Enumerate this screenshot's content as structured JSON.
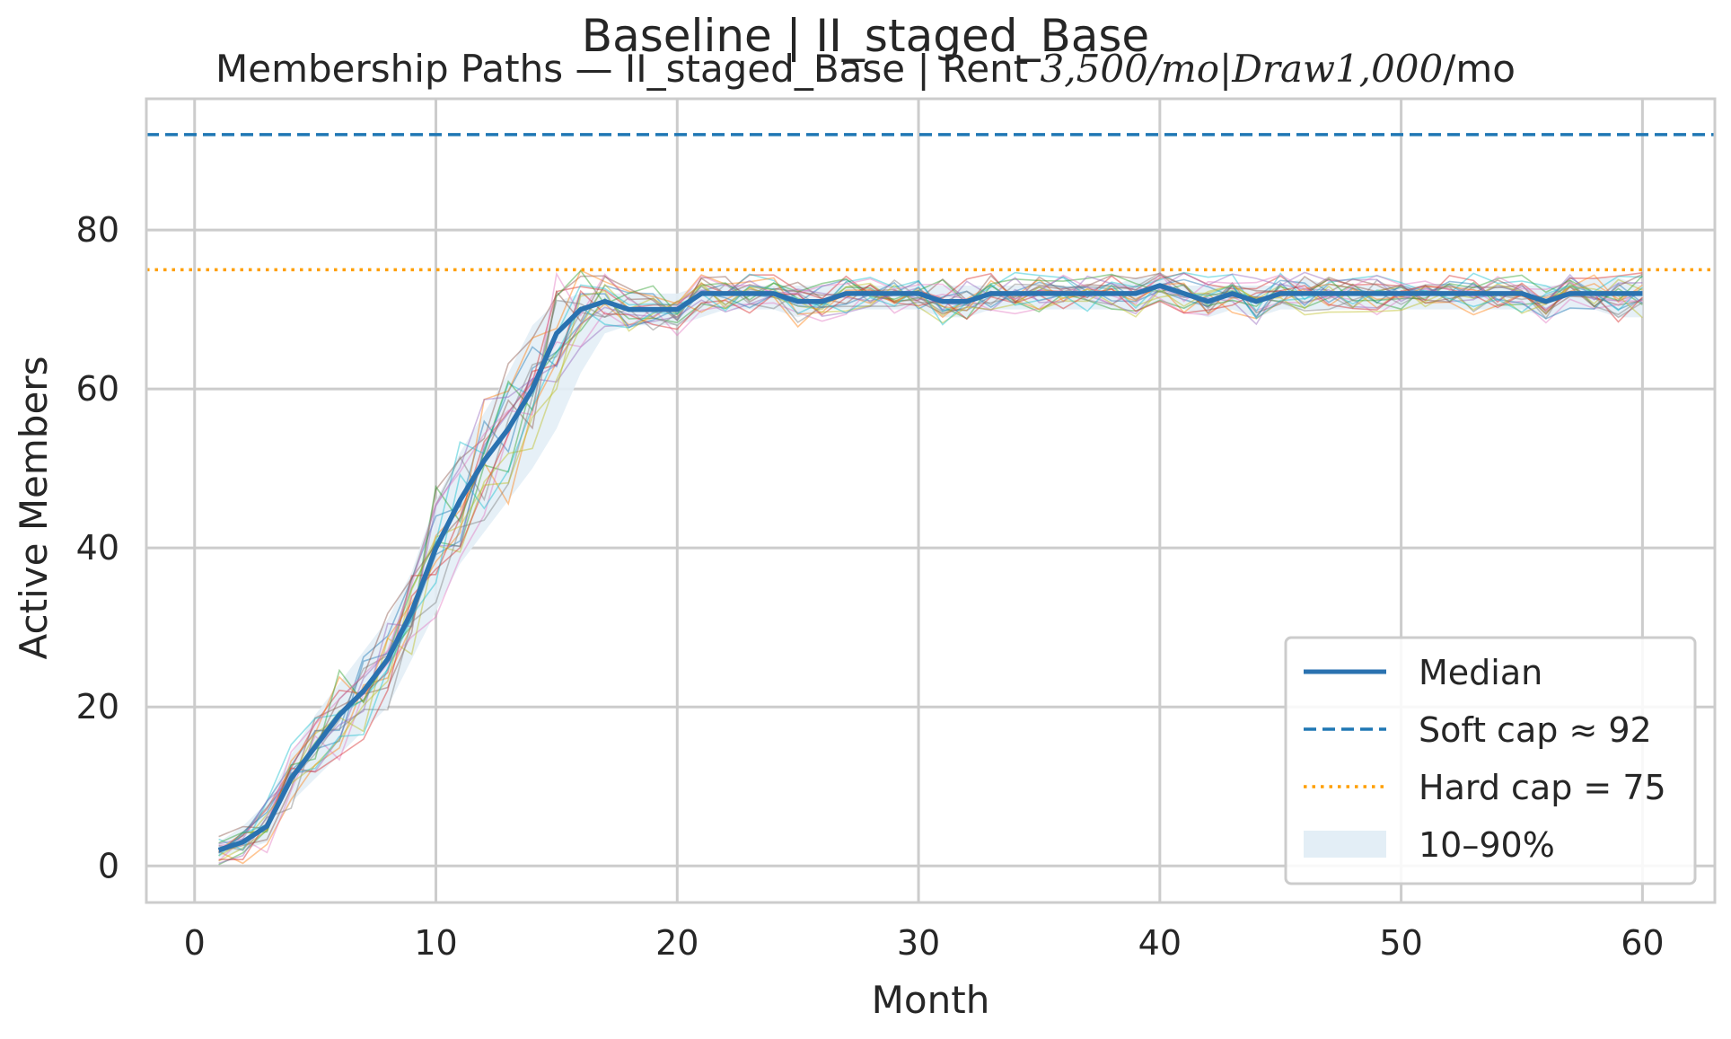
{
  "chart_data": {
    "type": "line",
    "title": "Baseline | II_staged_Base",
    "subtitle": "Membership Paths — II_staged_Base | Rent 3,500/mo|Draw1,000/mo",
    "subtitle_parts": [
      "Membership Paths — II_staged_Base | Rent ",
      "3,500/mo|Draw1,000",
      "/mo"
    ],
    "xlabel": "Month",
    "ylabel": "Active Members",
    "xlim": [
      -2,
      63
    ],
    "ylim": [
      -4.6,
      96.5
    ],
    "xticks": [
      0,
      10,
      20,
      30,
      40,
      50,
      60
    ],
    "yticks": [
      0,
      20,
      40,
      60,
      80
    ],
    "grid": true,
    "legend_position": "lower-right",
    "legend": [
      {
        "label": "Median",
        "style": "solid",
        "color": "#2a72b0"
      },
      {
        "label": "Soft cap ≈ 92",
        "style": "dashed",
        "color": "#1f77b4"
      },
      {
        "label": "Hard cap = 75",
        "style": "dotted",
        "color": "#ff9f00"
      },
      {
        "label": "10–90%",
        "style": "band",
        "color": "#e3eef6"
      }
    ],
    "soft_cap": 92,
    "hard_cap": 75,
    "median": {
      "x": [
        1,
        2,
        3,
        4,
        5,
        6,
        7,
        8,
        9,
        10,
        11,
        12,
        13,
        14,
        15,
        16,
        17,
        18,
        19,
        20,
        21,
        22,
        23,
        24,
        25,
        26,
        27,
        28,
        29,
        30,
        31,
        32,
        33,
        34,
        35,
        36,
        37,
        38,
        39,
        40,
        41,
        42,
        43,
        44,
        45,
        46,
        47,
        48,
        49,
        50,
        51,
        52,
        53,
        54,
        55,
        56,
        57,
        58,
        59,
        60
      ],
      "y": [
        2,
        3,
        5,
        11,
        15,
        19,
        22,
        26,
        32,
        40,
        46,
        51,
        55,
        60,
        67,
        70,
        71,
        70,
        70,
        70,
        72,
        72,
        72,
        72,
        71,
        71,
        72,
        72,
        72,
        72,
        71,
        71,
        72,
        72,
        72,
        72,
        72,
        72,
        72,
        73,
        72,
        71,
        72,
        71,
        72,
        72,
        72,
        72,
        72,
        72,
        72,
        72,
        72,
        72,
        72,
        71,
        72,
        72,
        72,
        72
      ]
    },
    "band": {
      "label": "10–90%",
      "lower": [
        1,
        2,
        3,
        8,
        11,
        14,
        17,
        20,
        26,
        32,
        38,
        42,
        46,
        50,
        55,
        62,
        67,
        68,
        68,
        68,
        69,
        70,
        70,
        70,
        69,
        70,
        70,
        70,
        70,
        70,
        69,
        69,
        70,
        70,
        70,
        70,
        70,
        70,
        70,
        71,
        70,
        69,
        70,
        69,
        70,
        70,
        70,
        70,
        70,
        70,
        70,
        70,
        70,
        70,
        70,
        69,
        70,
        70,
        69,
        69
      ],
      "upper": [
        3,
        5,
        8,
        14,
        19,
        23,
        27,
        31,
        37,
        46,
        52,
        57,
        62,
        68,
        71,
        72,
        72,
        72,
        72,
        72,
        73,
        73,
        73,
        73,
        73,
        73,
        73,
        73,
        73,
        73,
        73,
        73,
        73,
        73,
        73,
        73,
        73,
        73,
        74,
        74,
        73,
        73,
        73,
        73,
        73,
        74,
        73,
        73,
        73,
        73,
        73,
        73,
        73,
        73,
        73,
        73,
        73,
        74,
        74,
        73
      ]
    },
    "sample_paths": {
      "count": 20,
      "colors": [
        "#1f77b4",
        "#ff7f0e",
        "#2ca02c",
        "#d62728",
        "#9467bd",
        "#8c564b",
        "#e377c2",
        "#7f7f7f",
        "#bcbd22",
        "#17becf"
      ]
    }
  }
}
